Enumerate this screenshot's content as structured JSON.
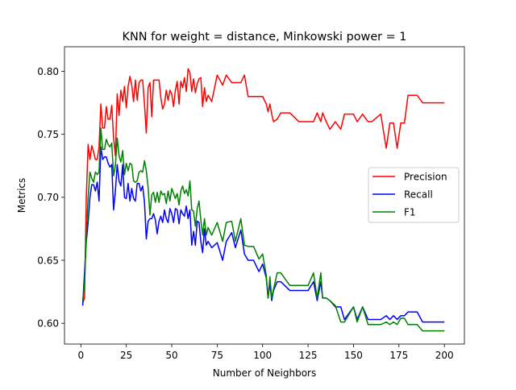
{
  "chart_data": {
    "type": "line",
    "title": "KNN for weight = distance, Minkowski power = 1",
    "xlabel": "Number of Neighbors",
    "ylabel": "Metrics",
    "xlim": [
      -9,
      211
    ],
    "ylim": [
      0.5835,
      0.8195
    ],
    "xticks": [
      0,
      25,
      50,
      75,
      100,
      125,
      150,
      175,
      200
    ],
    "yticks": [
      0.6,
      0.65,
      0.7,
      0.75,
      0.8
    ],
    "grid": false,
    "legend_position": "center-right",
    "series": [
      {
        "name": "Precision",
        "color": "#ff0000",
        "x": [
          1,
          2,
          3,
          4,
          5,
          6,
          7,
          8,
          9,
          10,
          11,
          12,
          13,
          14,
          15,
          16,
          17,
          18,
          19,
          20,
          21,
          22,
          23,
          24,
          25,
          26,
          27,
          28,
          29,
          30,
          31,
          32,
          33,
          34,
          35,
          36,
          37,
          38,
          39,
          40,
          41,
          42,
          43,
          44,
          45,
          46,
          47,
          48,
          49,
          50,
          51,
          52,
          53,
          54,
          55,
          56,
          57,
          58,
          59,
          60,
          61,
          62,
          63,
          64,
          65,
          66,
          67,
          68,
          69,
          70,
          72,
          75,
          78,
          80,
          83,
          85,
          88,
          90,
          92,
          95,
          98,
          100,
          102,
          103,
          104,
          105,
          106,
          108,
          110,
          115,
          120,
          125,
          128,
          130,
          132,
          133,
          135,
          137,
          140,
          143,
          145,
          150,
          152,
          155,
          158,
          160,
          165,
          168,
          170,
          172,
          174,
          176,
          178,
          180,
          185,
          188,
          190,
          195,
          200
        ],
        "y": [
          0.616,
          0.62,
          0.7,
          0.742,
          0.73,
          0.741,
          0.736,
          0.73,
          0.73,
          0.74,
          0.774,
          0.755,
          0.755,
          0.772,
          0.762,
          0.762,
          0.773,
          0.747,
          0.733,
          0.782,
          0.765,
          0.785,
          0.776,
          0.788,
          0.771,
          0.788,
          0.796,
          0.789,
          0.776,
          0.793,
          0.777,
          0.791,
          0.793,
          0.793,
          0.774,
          0.751,
          0.787,
          0.791,
          0.764,
          0.793,
          0.793,
          0.793,
          0.793,
          0.779,
          0.77,
          0.774,
          0.785,
          0.777,
          0.785,
          0.782,
          0.772,
          0.785,
          0.792,
          0.774,
          0.792,
          0.787,
          0.795,
          0.784,
          0.802,
          0.799,
          0.784,
          0.794,
          0.783,
          0.79,
          0.794,
          0.795,
          0.772,
          0.787,
          0.776,
          0.781,
          0.776,
          0.797,
          0.789,
          0.797,
          0.791,
          0.791,
          0.791,
          0.797,
          0.78,
          0.78,
          0.78,
          0.78,
          0.774,
          0.768,
          0.774,
          0.766,
          0.76,
          0.762,
          0.767,
          0.767,
          0.76,
          0.76,
          0.76,
          0.767,
          0.76,
          0.767,
          0.76,
          0.754,
          0.76,
          0.754,
          0.766,
          0.766,
          0.76,
          0.766,
          0.76,
          0.76,
          0.766,
          0.739,
          0.759,
          0.759,
          0.739,
          0.759,
          0.759,
          0.781,
          0.781,
          0.775,
          0.775,
          0.775,
          0.775
        ]
      },
      {
        "name": "Recall",
        "color": "#0000ff",
        "x": [
          1,
          2,
          3,
          4,
          5,
          6,
          7,
          8,
          9,
          10,
          11,
          12,
          13,
          14,
          15,
          16,
          17,
          18,
          19,
          20,
          21,
          22,
          23,
          24,
          25,
          26,
          27,
          28,
          29,
          30,
          31,
          32,
          33,
          34,
          35,
          36,
          37,
          38,
          39,
          40,
          41,
          42,
          43,
          44,
          45,
          46,
          47,
          48,
          49,
          50,
          51,
          52,
          53,
          54,
          55,
          56,
          57,
          58,
          59,
          60,
          61,
          62,
          63,
          64,
          65,
          66,
          67,
          68,
          69,
          70,
          72,
          75,
          78,
          80,
          83,
          85,
          88,
          90,
          92,
          95,
          98,
          100,
          102,
          103,
          104,
          105,
          106,
          108,
          110,
          115,
          120,
          125,
          128,
          130,
          132,
          133,
          135,
          137,
          140,
          143,
          145,
          150,
          152,
          155,
          158,
          160,
          165,
          168,
          170,
          172,
          174,
          176,
          178,
          180,
          185,
          188,
          190,
          195,
          200
        ],
        "y": [
          0.614,
          0.64,
          0.665,
          0.68,
          0.7,
          0.71,
          0.71,
          0.705,
          0.712,
          0.697,
          0.74,
          0.73,
          0.732,
          0.732,
          0.727,
          0.724,
          0.726,
          0.69,
          0.705,
          0.726,
          0.713,
          0.709,
          0.726,
          0.7,
          0.699,
          0.711,
          0.697,
          0.707,
          0.699,
          0.697,
          0.711,
          0.711,
          0.705,
          0.709,
          0.696,
          0.667,
          0.681,
          0.683,
          0.683,
          0.687,
          0.682,
          0.671,
          0.681,
          0.685,
          0.68,
          0.69,
          0.683,
          0.68,
          0.691,
          0.687,
          0.68,
          0.691,
          0.69,
          0.679,
          0.69,
          0.687,
          0.685,
          0.693,
          0.683,
          0.69,
          0.662,
          0.673,
          0.662,
          0.681,
          0.68,
          0.665,
          0.656,
          0.675,
          0.662,
          0.665,
          0.66,
          0.664,
          0.65,
          0.665,
          0.672,
          0.66,
          0.674,
          0.655,
          0.65,
          0.65,
          0.641,
          0.647,
          0.636,
          0.62,
          0.632,
          0.618,
          0.626,
          0.633,
          0.633,
          0.626,
          0.626,
          0.626,
          0.633,
          0.618,
          0.633,
          0.62,
          0.62,
          0.618,
          0.613,
          0.613,
          0.603,
          0.613,
          0.603,
          0.613,
          0.603,
          0.603,
          0.603,
          0.606,
          0.603,
          0.606,
          0.603,
          0.606,
          0.606,
          0.609,
          0.609,
          0.601,
          0.601,
          0.601,
          0.601
        ]
      },
      {
        "name": "F1",
        "color": "#008000",
        "x": [
          1,
          2,
          3,
          4,
          5,
          6,
          7,
          8,
          9,
          10,
          11,
          12,
          13,
          14,
          15,
          16,
          17,
          18,
          19,
          20,
          21,
          22,
          23,
          24,
          25,
          26,
          27,
          28,
          29,
          30,
          31,
          32,
          33,
          34,
          35,
          36,
          37,
          38,
          39,
          40,
          41,
          42,
          43,
          44,
          45,
          46,
          47,
          48,
          49,
          50,
          51,
          52,
          53,
          54,
          55,
          56,
          57,
          58,
          59,
          60,
          61,
          62,
          63,
          64,
          65,
          66,
          67,
          68,
          69,
          70,
          72,
          75,
          78,
          80,
          83,
          85,
          88,
          90,
          92,
          95,
          98,
          100,
          102,
          103,
          104,
          105,
          106,
          108,
          110,
          115,
          120,
          125,
          128,
          130,
          132,
          133,
          135,
          137,
          140,
          143,
          145,
          150,
          152,
          155,
          158,
          160,
          165,
          168,
          170,
          172,
          174,
          176,
          178,
          180,
          185,
          188,
          190,
          195,
          200
        ],
        "y": [
          0.618,
          0.63,
          0.67,
          0.7,
          0.72,
          0.715,
          0.712,
          0.72,
          0.718,
          0.72,
          0.755,
          0.738,
          0.738,
          0.746,
          0.742,
          0.74,
          0.743,
          0.717,
          0.725,
          0.747,
          0.733,
          0.728,
          0.737,
          0.718,
          0.727,
          0.721,
          0.727,
          0.726,
          0.713,
          0.712,
          0.713,
          0.72,
          0.721,
          0.72,
          0.729,
          0.721,
          0.708,
          0.686,
          0.702,
          0.704,
          0.696,
          0.704,
          0.696,
          0.705,
          0.702,
          0.703,
          0.695,
          0.705,
          0.697,
          0.707,
          0.703,
          0.699,
          0.703,
          0.694,
          0.705,
          0.709,
          0.703,
          0.706,
          0.701,
          0.713,
          0.69,
          0.689,
          0.677,
          0.691,
          0.697,
          0.682,
          0.67,
          0.683,
          0.67,
          0.676,
          0.67,
          0.68,
          0.665,
          0.68,
          0.681,
          0.665,
          0.683,
          0.662,
          0.661,
          0.661,
          0.651,
          0.655,
          0.638,
          0.62,
          0.637,
          0.62,
          0.627,
          0.64,
          0.64,
          0.63,
          0.63,
          0.63,
          0.64,
          0.62,
          0.64,
          0.62,
          0.62,
          0.618,
          0.614,
          0.601,
          0.601,
          0.613,
          0.601,
          0.613,
          0.599,
          0.599,
          0.599,
          0.601,
          0.599,
          0.601,
          0.599,
          0.604,
          0.604,
          0.599,
          0.599,
          0.594,
          0.594,
          0.594,
          0.594
        ]
      }
    ]
  }
}
